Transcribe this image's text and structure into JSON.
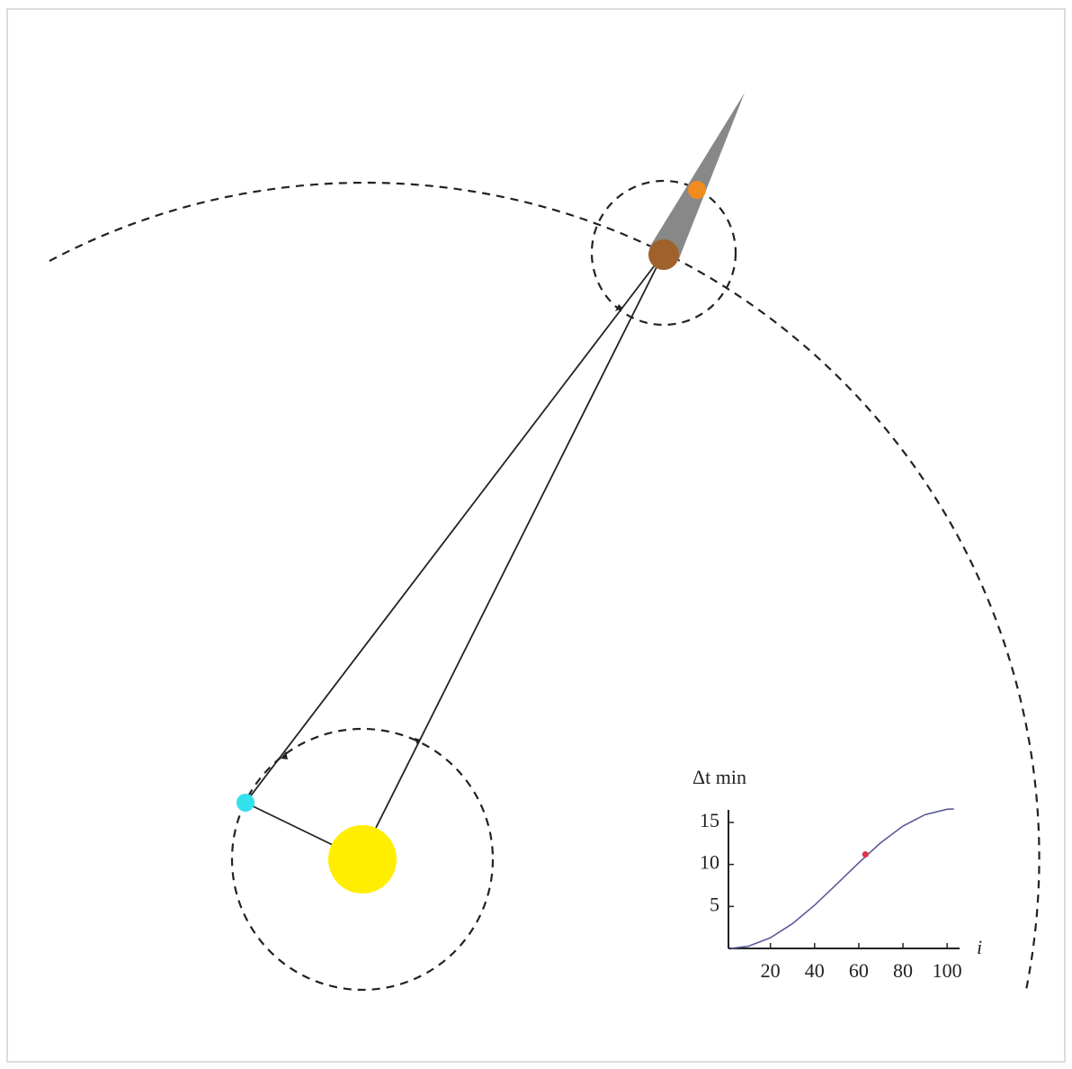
{
  "chart_data": {
    "type": "line",
    "xlabel": "i",
    "ylabel": "Δt min",
    "xlim": [
      1,
      104
    ],
    "ylim": [
      0,
      16.5
    ],
    "xticks": [
      20,
      40,
      60,
      80,
      100
    ],
    "yticks": [
      5,
      10,
      15
    ],
    "series": [
      {
        "color": "#5a5a9a",
        "mode": "line",
        "x": [
          2,
          10,
          20,
          30,
          40,
          50,
          60,
          70,
          80,
          90,
          100,
          103
        ],
        "values": [
          0,
          0.26,
          1.27,
          2.95,
          5.15,
          7.65,
          10.2,
          12.6,
          14.57,
          15.93,
          16.57,
          16.6
        ]
      },
      {
        "color": "#e0304a",
        "mode": "point",
        "x": [
          63
        ],
        "values": [
          11.2
        ]
      }
    ]
  }
}
